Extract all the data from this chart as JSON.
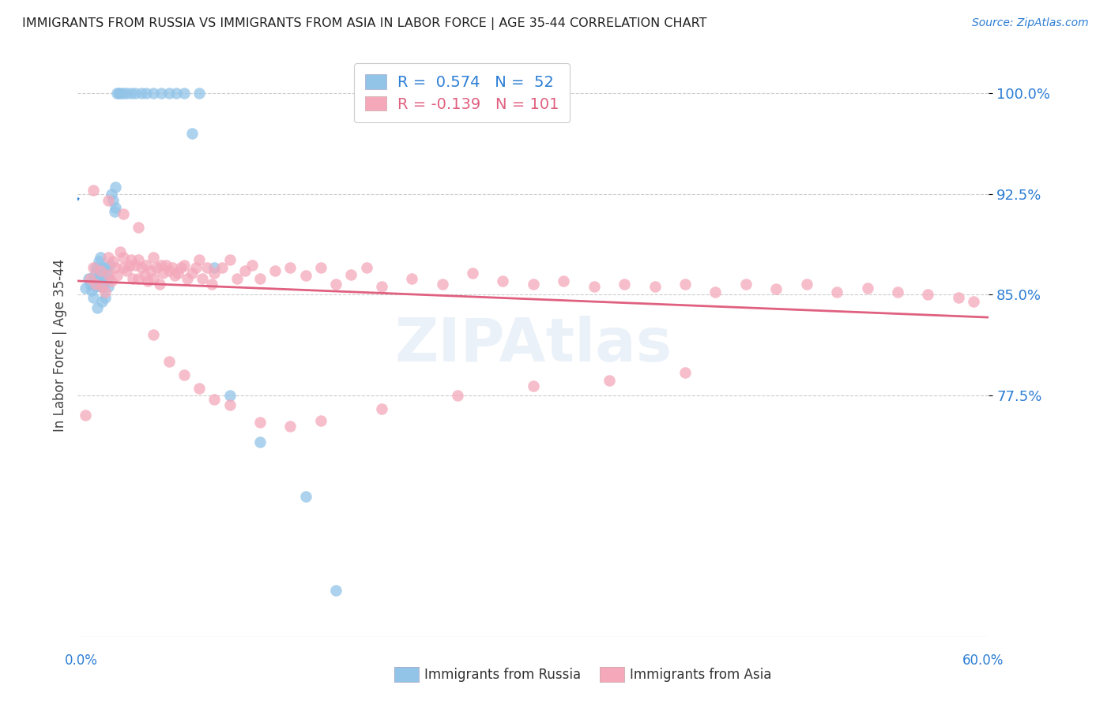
{
  "title": "IMMIGRANTS FROM RUSSIA VS IMMIGRANTS FROM ASIA IN LABOR FORCE | AGE 35-44 CORRELATION CHART",
  "source": "Source: ZipAtlas.com",
  "ylabel": "In Labor Force | Age 35-44",
  "yticks": [
    0.775,
    0.85,
    0.925,
    1.0
  ],
  "ytick_labels": [
    "77.5%",
    "85.0%",
    "92.5%",
    "100.0%"
  ],
  "xlim": [
    0.0,
    0.6
  ],
  "ylim": [
    0.595,
    1.03
  ],
  "russia_color": "#92C4E8",
  "asia_color": "#F4A8BA",
  "russia_line_color": "#2B7DD4",
  "asia_line_color": "#E06080",
  "watermark": "ZIPAtlas",
  "russia_x": [
    0.005,
    0.007,
    0.008,
    0.009,
    0.01,
    0.01,
    0.011,
    0.012,
    0.012,
    0.013,
    0.013,
    0.014,
    0.014,
    0.015,
    0.015,
    0.015,
    0.016,
    0.016,
    0.017,
    0.017,
    0.018,
    0.018,
    0.019,
    0.02,
    0.02,
    0.021,
    0.022,
    0.023,
    0.024,
    0.025,
    0.025,
    0.026,
    0.027,
    0.028,
    0.03,
    0.032,
    0.035,
    0.038,
    0.042,
    0.045,
    0.05,
    0.055,
    0.06,
    0.065,
    0.07,
    0.075,
    0.08,
    0.09,
    0.1,
    0.12,
    0.15,
    0.17
  ],
  "russia_y": [
    0.855,
    0.862,
    0.858,
    0.853,
    0.848,
    0.86,
    0.865,
    0.87,
    0.856,
    0.868,
    0.84,
    0.862,
    0.875,
    0.856,
    0.862,
    0.878,
    0.845,
    0.87,
    0.856,
    0.862,
    0.848,
    0.87,
    0.868,
    0.862,
    0.856,
    0.872,
    0.925,
    0.92,
    0.912,
    0.93,
    0.915,
    1.0,
    1.0,
    1.0,
    1.0,
    1.0,
    1.0,
    1.0,
    1.0,
    1.0,
    1.0,
    1.0,
    1.0,
    1.0,
    1.0,
    0.97,
    1.0,
    0.87,
    0.775,
    0.74,
    0.7,
    0.63
  ],
  "asia_x": [
    0.005,
    0.008,
    0.01,
    0.012,
    0.015,
    0.016,
    0.018,
    0.02,
    0.02,
    0.022,
    0.023,
    0.025,
    0.026,
    0.028,
    0.03,
    0.03,
    0.032,
    0.034,
    0.035,
    0.036,
    0.038,
    0.04,
    0.04,
    0.042,
    0.044,
    0.045,
    0.046,
    0.048,
    0.05,
    0.05,
    0.052,
    0.054,
    0.055,
    0.056,
    0.058,
    0.06,
    0.062,
    0.064,
    0.066,
    0.068,
    0.07,
    0.072,
    0.075,
    0.078,
    0.08,
    0.082,
    0.085,
    0.088,
    0.09,
    0.095,
    0.1,
    0.105,
    0.11,
    0.115,
    0.12,
    0.13,
    0.14,
    0.15,
    0.16,
    0.17,
    0.18,
    0.19,
    0.2,
    0.22,
    0.24,
    0.26,
    0.28,
    0.3,
    0.32,
    0.34,
    0.36,
    0.38,
    0.4,
    0.42,
    0.44,
    0.46,
    0.48,
    0.5,
    0.52,
    0.54,
    0.56,
    0.58,
    0.01,
    0.02,
    0.03,
    0.04,
    0.05,
    0.06,
    0.07,
    0.08,
    0.09,
    0.1,
    0.12,
    0.14,
    0.16,
    0.2,
    0.25,
    0.3,
    0.35,
    0.4,
    0.59
  ],
  "asia_y": [
    0.76,
    0.862,
    0.87,
    0.858,
    0.868,
    0.856,
    0.852,
    0.878,
    0.865,
    0.86,
    0.875,
    0.87,
    0.864,
    0.882,
    0.87,
    0.878,
    0.868,
    0.872,
    0.876,
    0.862,
    0.872,
    0.876,
    0.862,
    0.87,
    0.864,
    0.872,
    0.86,
    0.868,
    0.878,
    0.862,
    0.87,
    0.858,
    0.872,
    0.866,
    0.872,
    0.868,
    0.87,
    0.864,
    0.866,
    0.87,
    0.872,
    0.862,
    0.866,
    0.87,
    0.876,
    0.862,
    0.87,
    0.858,
    0.866,
    0.87,
    0.876,
    0.862,
    0.868,
    0.872,
    0.862,
    0.868,
    0.87,
    0.864,
    0.87,
    0.858,
    0.865,
    0.87,
    0.856,
    0.862,
    0.858,
    0.866,
    0.86,
    0.858,
    0.86,
    0.856,
    0.858,
    0.856,
    0.858,
    0.852,
    0.858,
    0.854,
    0.858,
    0.852,
    0.855,
    0.852,
    0.85,
    0.848,
    0.928,
    0.92,
    0.91,
    0.9,
    0.82,
    0.8,
    0.79,
    0.78,
    0.772,
    0.768,
    0.755,
    0.752,
    0.756,
    0.765,
    0.775,
    0.782,
    0.786,
    0.792,
    0.845
  ]
}
